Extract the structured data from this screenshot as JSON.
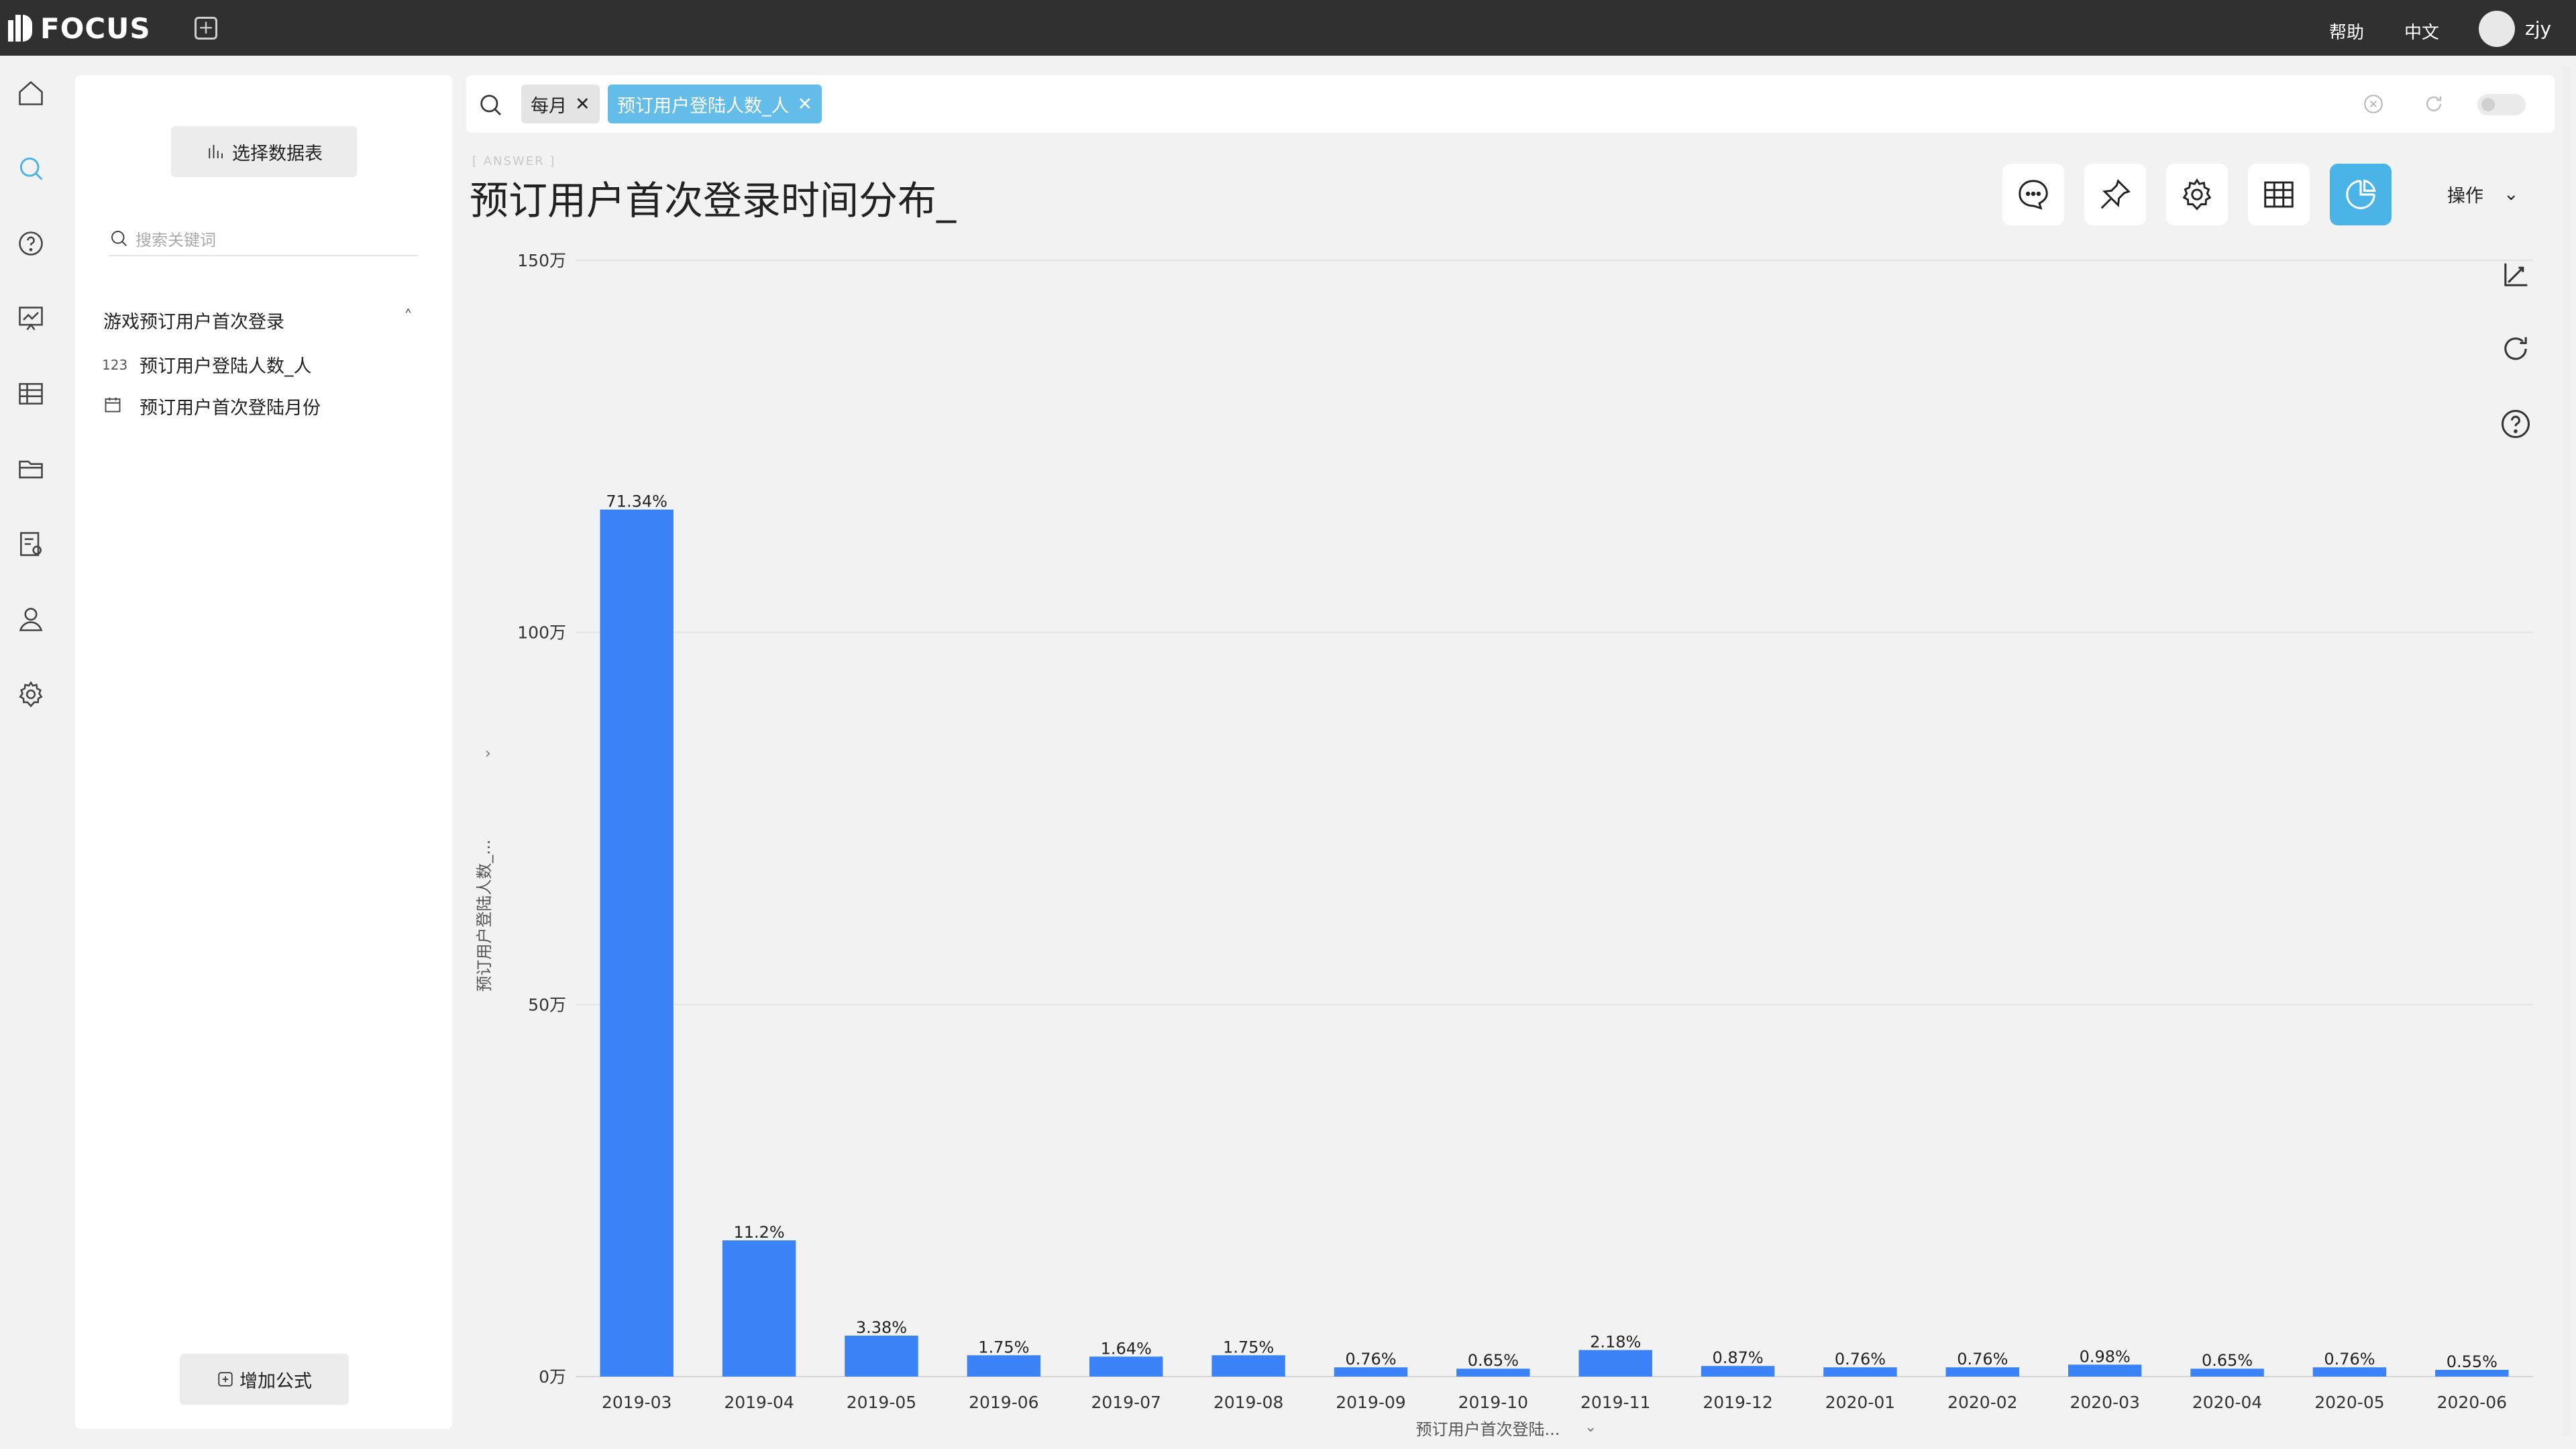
{
  "app": {
    "brand": "FOCUS",
    "help_label": "帮助",
    "lang_label": "中文",
    "username": "zjy"
  },
  "nav_items": [
    "home-icon",
    "search-icon",
    "question-icon",
    "dashboard-icon",
    "table-icon",
    "folder-icon",
    "report-icon",
    "user-icon",
    "settings-icon"
  ],
  "data_panel": {
    "select_table_label": "选择数据表",
    "search_placeholder": "搜索关键词",
    "table_name": "游戏预订用户首次登录",
    "fields": [
      {
        "type": "123",
        "name": "预订用户登陆人数_人"
      },
      {
        "type": "date",
        "name": "预订用户首次登陆月份"
      }
    ],
    "add_formula_label": "增加公式"
  },
  "search_bar": {
    "tokens": [
      "每月",
      "预订用户登陆人数_人"
    ]
  },
  "answer": {
    "tag": "[ ANSWER ]",
    "title": "预订用户首次登录时间分布_",
    "ops_label": "操作"
  },
  "colors": {
    "bar": "#3b82f6",
    "accent": "#4bb4e6",
    "topbar": "#303030"
  },
  "chart_data": {
    "type": "bar",
    "categories": [
      "2019-03",
      "2019-04",
      "2019-05",
      "2019-06",
      "2019-07",
      "2019-08",
      "2019-09",
      "2019-10",
      "2019-11",
      "2019-12",
      "2020-01",
      "2020-02",
      "2020-03",
      "2020-04",
      "2020-05",
      "2020-06"
    ],
    "values": [
      1165000,
      183000,
      55000,
      28600,
      26800,
      28600,
      12400,
      10600,
      35600,
      14200,
      12400,
      12400,
      16000,
      10600,
      12400,
      9000
    ],
    "labels": [
      "71.34%",
      "11.2%",
      "3.38%",
      "1.75%",
      "1.64%",
      "1.75%",
      "0.76%",
      "0.65%",
      "2.18%",
      "0.87%",
      "0.76%",
      "0.76%",
      "0.98%",
      "0.65%",
      "0.76%",
      "0.55%"
    ],
    "yticks": [
      "0万",
      "50万",
      "100万",
      "150万"
    ],
    "ylim": [
      0,
      1500000
    ],
    "xlabel": "预订用户首次登陆...",
    "ylabel": "预订用户登陆人数_...",
    "grid": true
  }
}
